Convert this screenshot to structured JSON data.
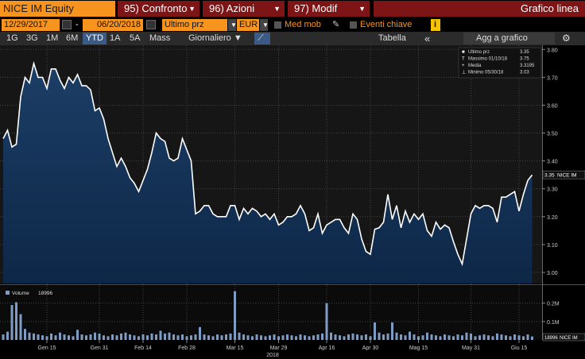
{
  "toolbar": {
    "security": "NICE IM Equity",
    "tabs": [
      "95) Confronto",
      "96) Azioni",
      "97) Modif"
    ],
    "view": "Grafico linea"
  },
  "controls": {
    "start_date": "12/29/2017",
    "separator": "-",
    "end_date": "06/20/2018",
    "field": "Ultimo prz",
    "currency": "EUR",
    "moving_avg": "Med mob",
    "events": "Eventi chiave",
    "info": "i"
  },
  "periods": [
    "1G",
    "3G",
    "1M",
    "6M",
    "YTD",
    "1A",
    "5A",
    "Mass"
  ],
  "active_period": "YTD",
  "frequency": "Giornaliero",
  "table": "Tabella",
  "collapse": "«",
  "add": "Agg a grafico",
  "stats": [
    {
      "label": "Ultimo prz",
      "value": 3.35
    },
    {
      "label": "Massimo 01/10/18",
      "value": 3.75
    },
    {
      "label": "Media",
      "value": 3.3195
    },
    {
      "label": "Minimo 05/30/18",
      "value": 3.03
    }
  ],
  "chart_data": [
    {
      "type": "area",
      "ylim": [
        2.96,
        3.815
      ],
      "yticks": [
        {
          "value": 3.0,
          "label": "3.00"
        },
        {
          "value": 3.1,
          "label": "3.10"
        },
        {
          "value": 3.2,
          "label": "3.20"
        },
        {
          "value": 3.3,
          "label": "3.30"
        },
        {
          "value": 3.4,
          "label": "3.40"
        },
        {
          "value": 3.5,
          "label": "3.50"
        },
        {
          "value": 3.6,
          "label": "3.60"
        },
        {
          "value": 3.7,
          "label": "3.70"
        },
        {
          "value": 3.8,
          "label": "3.80"
        }
      ],
      "grid": true,
      "series": [
        {
          "name": "NICE IM",
          "color": "#ffffff",
          "values": [
            3.48,
            3.51,
            3.45,
            3.46,
            3.63,
            3.7,
            3.68,
            3.75,
            3.7,
            3.7,
            3.66,
            3.73,
            3.73,
            3.69,
            3.66,
            3.7,
            3.68,
            3.71,
            3.67,
            3.67,
            3.655,
            3.58,
            3.59,
            3.55,
            3.48,
            3.43,
            3.38,
            3.41,
            3.38,
            3.34,
            3.32,
            3.29,
            3.33,
            3.37,
            3.43,
            3.5,
            3.48,
            3.47,
            3.41,
            3.4,
            3.41,
            3.48,
            3.44,
            3.4,
            3.21,
            3.22,
            3.24,
            3.24,
            3.21,
            3.2,
            3.2,
            3.2,
            3.24,
            3.24,
            3.19,
            3.23,
            3.21,
            3.23,
            3.22,
            3.2,
            3.21,
            3.19,
            3.21,
            3.17,
            3.18,
            3.2,
            3.2,
            3.21,
            3.24,
            3.21,
            3.15,
            3.16,
            3.21,
            3.14,
            3.17,
            3.18,
            3.19,
            3.19,
            3.16,
            3.14,
            3.21,
            3.19,
            3.12,
            3.075,
            3.065,
            3.155,
            3.16,
            3.18,
            3.28,
            3.19,
            3.24,
            3.16,
            3.22,
            3.18,
            3.21,
            3.19,
            3.21,
            3.15,
            3.13,
            3.18,
            3.155,
            3.17,
            3.16,
            3.11,
            3.065,
            3.03,
            3.12,
            3.21,
            3.24,
            3.23,
            3.24,
            3.24,
            3.23,
            3.18,
            3.27,
            3.27,
            3.28,
            3.29,
            3.22,
            3.28,
            3.33,
            3.35
          ]
        }
      ]
    },
    {
      "type": "bar",
      "ylim": [
        0,
        285000
      ],
      "yticks": [
        {
          "value": 100000,
          "label": "0.1M"
        },
        {
          "value": 200000,
          "label": "0.2M"
        }
      ],
      "grid": true,
      "year": "2018",
      "categories": [
        null,
        null,
        null,
        null,
        null,
        null,
        null,
        null,
        null,
        null,
        "Gen 15",
        null,
        null,
        null,
        null,
        null,
        null,
        null,
        null,
        null,
        null,
        null,
        "Gen 31",
        null,
        null,
        null,
        null,
        null,
        null,
        null,
        null,
        null,
        "Feb 14",
        null,
        null,
        null,
        null,
        null,
        null,
        null,
        null,
        null,
        "Feb 28",
        null,
        null,
        null,
        null,
        null,
        null,
        null,
        null,
        null,
        null,
        "Mar 15",
        null,
        null,
        null,
        null,
        null,
        null,
        null,
        null,
        null,
        "Mar 29",
        null,
        null,
        null,
        null,
        null,
        null,
        null,
        null,
        null,
        null,
        "Apr 16",
        null,
        null,
        null,
        null,
        null,
        null,
        null,
        null,
        null,
        "Apr 30",
        null,
        null,
        null,
        null,
        null,
        null,
        null,
        null,
        null,
        null,
        "Mag 15",
        null,
        null,
        null,
        null,
        null,
        null,
        null,
        null,
        null,
        null,
        null,
        "May 31",
        null,
        null,
        null,
        null,
        null,
        null,
        null,
        null,
        null,
        null,
        "Giu 15",
        null,
        null,
        null
      ],
      "series": [
        {
          "name": "Volume",
          "color": "#7f9cc4",
          "values": [
            30000,
            45000,
            190000,
            205000,
            140000,
            60000,
            40000,
            35000,
            30000,
            25000,
            20000,
            35000,
            25000,
            40000,
            30000,
            25000,
            20000,
            55000,
            30000,
            25000,
            30000,
            40000,
            35000,
            25000,
            20000,
            30000,
            25000,
            35000,
            40000,
            30000,
            25000,
            20000,
            30000,
            25000,
            35000,
            30000,
            50000,
            35000,
            40000,
            30000,
            25000,
            30000,
            20000,
            25000,
            30000,
            70000,
            30000,
            25000,
            20000,
            30000,
            25000,
            30000,
            35000,
            265000,
            40000,
            30000,
            25000,
            20000,
            30000,
            25000,
            20000,
            25000,
            30000,
            20000,
            25000,
            30000,
            25000,
            20000,
            30000,
            25000,
            20000,
            25000,
            30000,
            35000,
            200000,
            40000,
            30000,
            25000,
            20000,
            30000,
            35000,
            30000,
            25000,
            30000,
            20000,
            95000,
            40000,
            30000,
            35000,
            95000,
            40000,
            30000,
            25000,
            45000,
            30000,
            20000,
            25000,
            40000,
            30000,
            25000,
            20000,
            30000,
            25000,
            20000,
            30000,
            25000,
            40000,
            35000,
            20000,
            25000,
            30000,
            25000,
            20000,
            35000,
            30000,
            25000,
            20000,
            30000,
            25000,
            20000,
            30000,
            18996
          ]
        }
      ]
    }
  ]
}
